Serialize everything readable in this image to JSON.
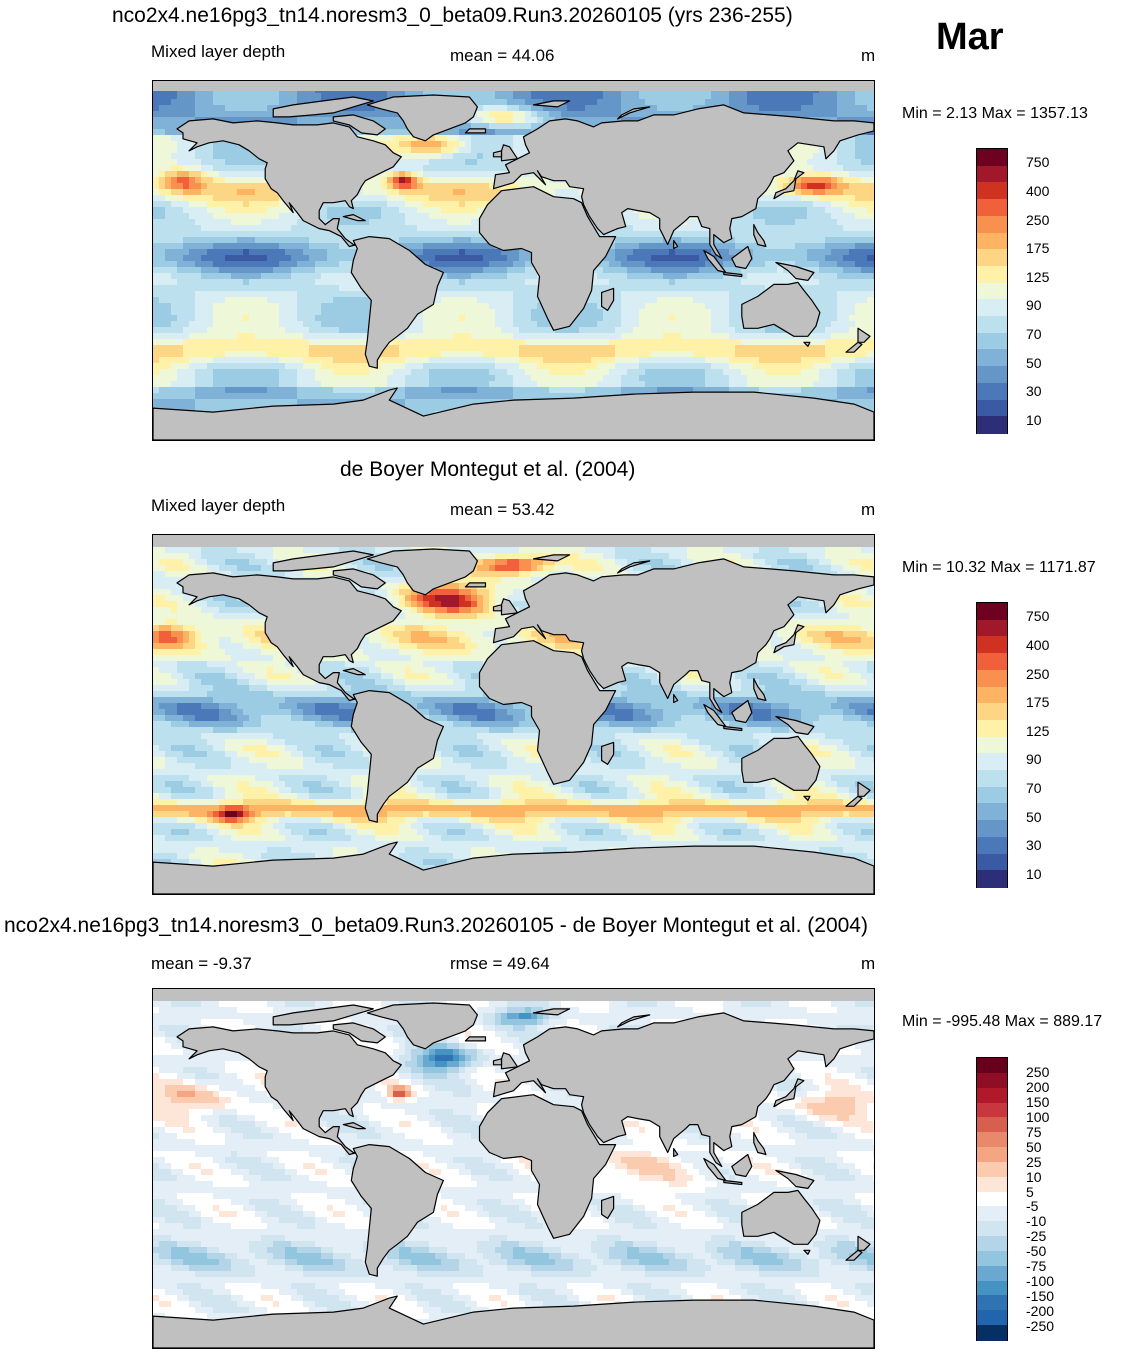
{
  "header": {
    "month": "Mar"
  },
  "chart_data": [
    {
      "type": "heatmap",
      "title": "nco2x4.ne16pg3_tn14.noresm3_0_beta09.Run3.20260105 (yrs 236-255)",
      "left_label": "Mixed layer depth",
      "center_label": "mean =  44.06",
      "right_label": "m",
      "minmax": "Min =    2.13 Max = 1357.13",
      "colorbar": {
        "labels": [
          "750",
          "400",
          "250",
          "175",
          "125",
          "90",
          "70",
          "50",
          "30",
          "10"
        ],
        "colors": [
          "#6e0020",
          "#a0182a",
          "#d03222",
          "#f0603a",
          "#f89050",
          "#fcb462",
          "#fdd685",
          "#fff2a8",
          "#eef7d8",
          "#d8eef4",
          "#bde0ee",
          "#9ccbe4",
          "#7fb2d6",
          "#6496c8",
          "#4a78b8",
          "#3a5aa4",
          "#2e2e78"
        ]
      },
      "field": "model"
    },
    {
      "type": "heatmap",
      "title": "de Boyer Montegut et al. (2004)",
      "left_label": "Mixed layer depth",
      "center_label": "mean =  53.42",
      "right_label": "m",
      "minmax": "Min =   10.32 Max = 1171.87",
      "colorbar": {
        "labels": [
          "750",
          "400",
          "250",
          "175",
          "125",
          "90",
          "70",
          "50",
          "30",
          "10"
        ],
        "colors": [
          "#6e0020",
          "#a0182a",
          "#d03222",
          "#f0603a",
          "#f89050",
          "#fcb462",
          "#fdd685",
          "#fff2a8",
          "#eef7d8",
          "#d8eef4",
          "#bde0ee",
          "#9ccbe4",
          "#7fb2d6",
          "#6496c8",
          "#4a78b8",
          "#3a5aa4",
          "#2e2e78"
        ]
      },
      "field": "obs"
    },
    {
      "type": "heatmap",
      "title": "nco2x4.ne16pg3_tn14.noresm3_0_beta09.Run3.20260105 - de Boyer Montegut et al. (2004)",
      "left_label": "mean =  -9.37",
      "center_label": "rmse =  49.64",
      "right_label": "m",
      "minmax": "Min = -995.48 Max = 889.17",
      "colorbar": {
        "labels": [
          "250",
          "200",
          "150",
          "100",
          "75",
          "50",
          "25",
          "10",
          "5",
          "-5",
          "-10",
          "-25",
          "-50",
          "-75",
          "-100",
          "-150",
          "-200",
          "-250"
        ],
        "colors": [
          "#67001f",
          "#8f0d25",
          "#b2182b",
          "#c9373e",
          "#d6604d",
          "#e8896b",
          "#f4a582",
          "#fbcbb0",
          "#fde6d8",
          "#ffffff",
          "#e4eef6",
          "#d1e5f0",
          "#b4d4e8",
          "#92c5de",
          "#6aa8d0",
          "#4393c3",
          "#2f73b2",
          "#2166ac",
          "#053061"
        ]
      },
      "field": "diff"
    }
  ]
}
